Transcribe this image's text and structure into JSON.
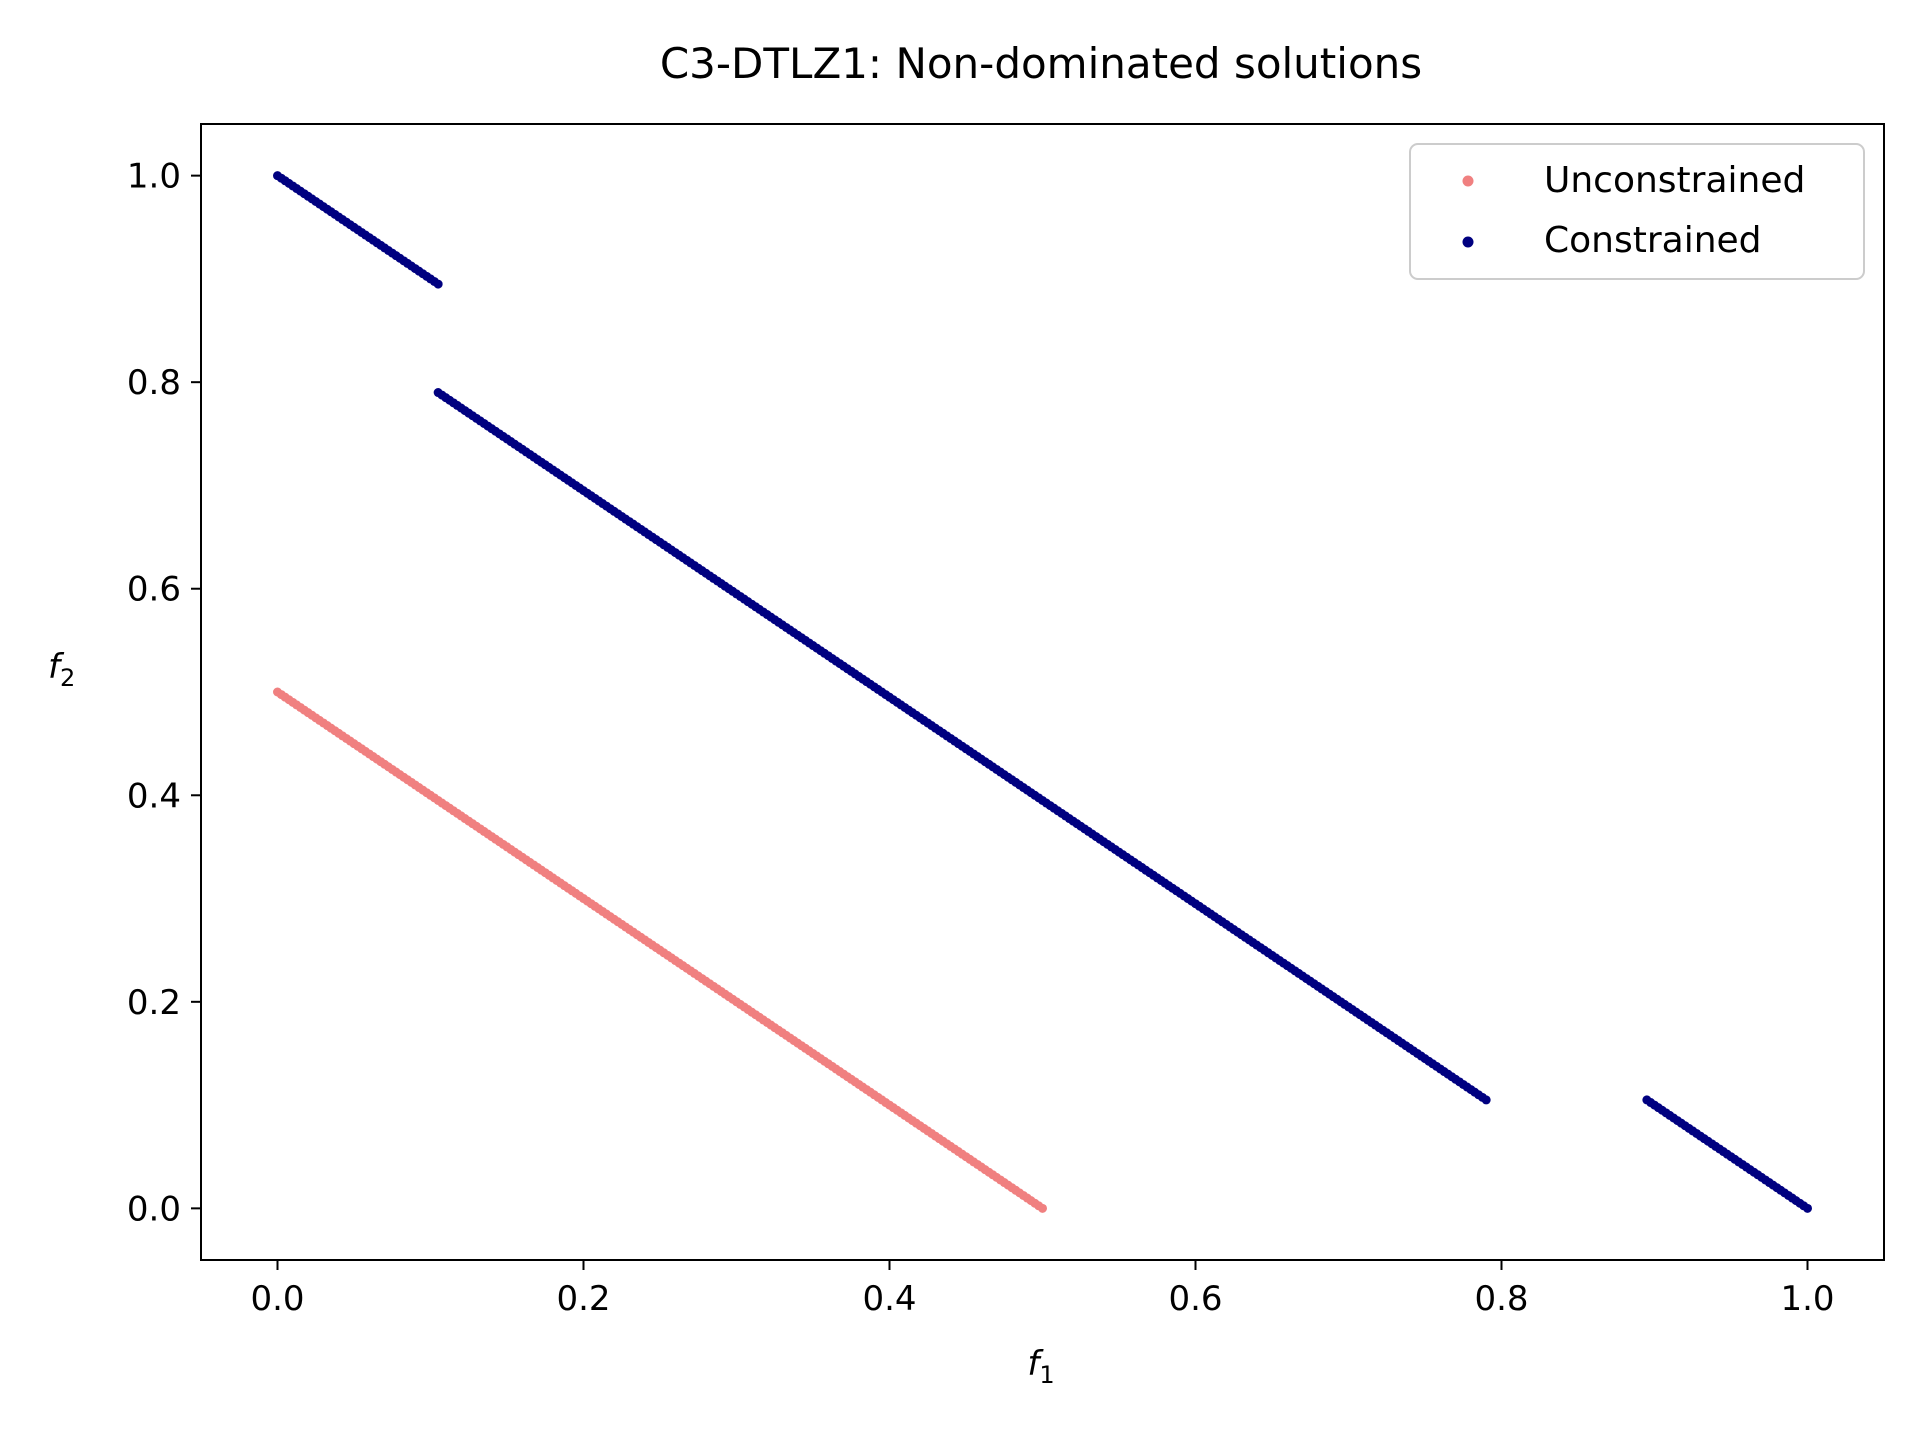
{
  "chart_data": {
    "type": "scatter",
    "title": "C3-DTLZ1: Non-dominated solutions",
    "xlabel": "f",
    "xlabel_sub": "1",
    "ylabel": "f",
    "ylabel_sub": "2",
    "xlim": [
      -0.05,
      1.05
    ],
    "ylim": [
      -0.05,
      1.05
    ],
    "xticks": [
      0.0,
      0.2,
      0.4,
      0.6,
      0.8,
      1.0
    ],
    "yticks": [
      0.0,
      0.2,
      0.4,
      0.6,
      0.8,
      1.0
    ],
    "xtick_labels": [
      "0.0",
      "0.2",
      "0.4",
      "0.6",
      "0.8",
      "1.0"
    ],
    "ytick_labels": [
      "0.0",
      "0.2",
      "0.4",
      "0.6",
      "0.8",
      "1.0"
    ],
    "grid": false,
    "legend_position": "top-right",
    "series": [
      {
        "name": "Unconstrained",
        "color": "#f08080",
        "segments": [
          {
            "x_start": 0.0,
            "x_end": 0.5,
            "y_at_start": 0.5,
            "slope": -1.0
          }
        ]
      },
      {
        "name": "Constrained",
        "color": "#000080",
        "segments": [
          {
            "x_start": 0.0,
            "x_end": 0.105,
            "y_at_start": 1.0,
            "slope": -1.0
          },
          {
            "x_start": 0.105,
            "x_end": 0.79,
            "y_at_start": 0.79,
            "slope": -1.0
          },
          {
            "x_start": 0.895,
            "x_end": 1.0,
            "y_at_start": 0.105,
            "slope": -1.0
          }
        ]
      }
    ]
  }
}
